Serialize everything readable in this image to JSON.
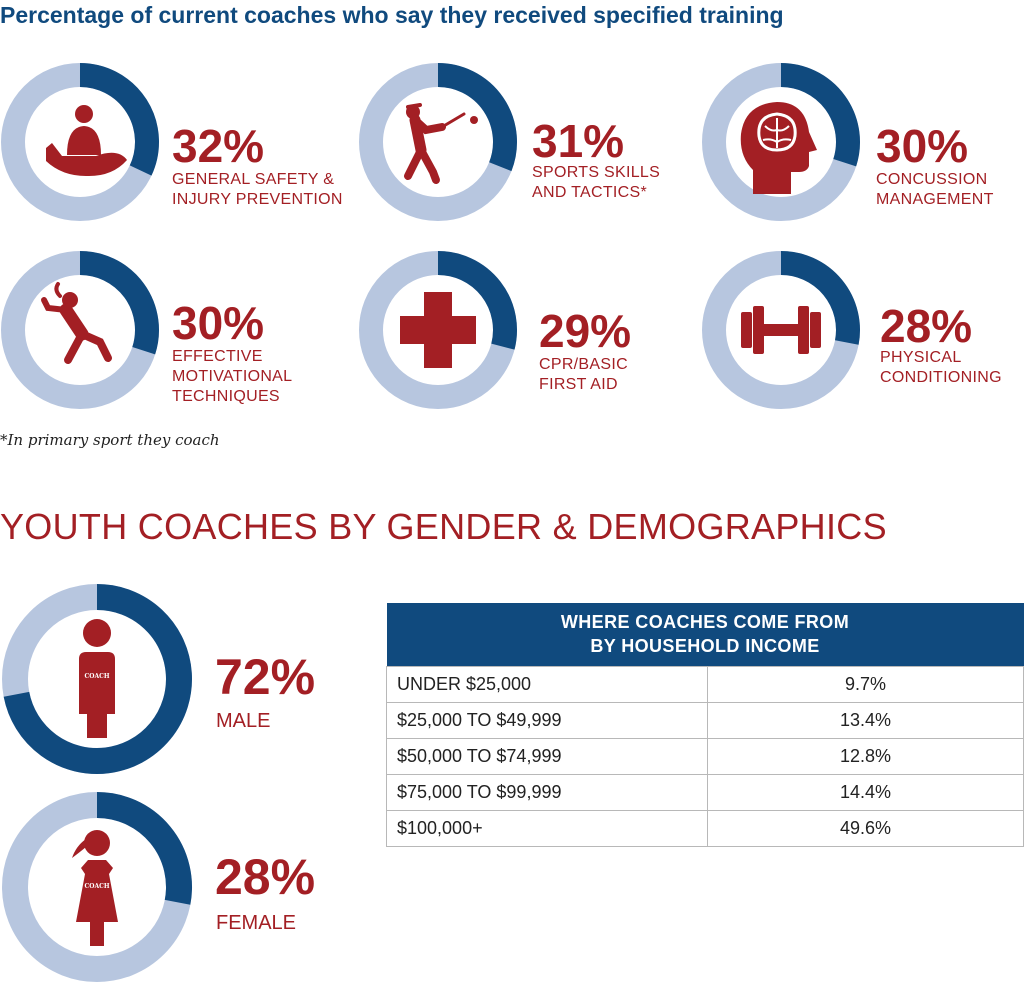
{
  "colors": {
    "navy": "#104a7e",
    "light_blue": "#b7c6df",
    "red": "#a31f24"
  },
  "training_title": "Percentage of current coaches who say they received specified training",
  "training": [
    {
      "percent_label": "32%",
      "label_line1": "GENERAL SAFETY &",
      "label_line2": "INJURY PREVENTION",
      "label_line3": "",
      "icon": "hand-holding-person-icon"
    },
    {
      "percent_label": "31%",
      "label_line1": "SPORTS SKILLS",
      "label_line2": "AND TACTICS*",
      "label_line3": "",
      "icon": "baseball-batter-icon"
    },
    {
      "percent_label": "30%",
      "label_line1": "CONCUSSION",
      "label_line2": "MANAGEMENT",
      "label_line3": "",
      "icon": "head-brain-icon"
    },
    {
      "percent_label": "30%",
      "label_line1": "EFFECTIVE",
      "label_line2": "MOTIVATIONAL",
      "label_line3": "TECHNIQUES",
      "icon": "jumping-athlete-icon"
    },
    {
      "percent_label": "29%",
      "label_line1": "CPR/BASIC",
      "label_line2": "FIRST AID",
      "label_line3": "",
      "icon": "medical-cross-icon"
    },
    {
      "percent_label": "28%",
      "label_line1": "PHYSICAL",
      "label_line2": "CONDITIONING",
      "label_line3": "",
      "icon": "dumbbell-icon"
    }
  ],
  "footnote": "*In primary sport they coach",
  "demographics_title": "YOUTH COACHES BY GENDER & DEMOGRAPHICS",
  "gender": [
    {
      "percent_label": "72%",
      "label": "MALE",
      "shirt_text": "COACH",
      "icon": "male-coach-icon"
    },
    {
      "percent_label": "28%",
      "label": "FEMALE",
      "shirt_text": "COACH",
      "icon": "female-coach-icon"
    }
  ],
  "income_table": {
    "header_line1": "WHERE COACHES COME FROM",
    "header_line2": "BY HOUSEHOLD INCOME",
    "rows": [
      {
        "range": "UNDER $25,000",
        "value": "9.7%"
      },
      {
        "range": "$25,000 TO $49,999",
        "value": "13.4%"
      },
      {
        "range": "$50,000 TO $74,999",
        "value": "12.8%"
      },
      {
        "range": "$75,000 TO $99,999",
        "value": "14.4%"
      },
      {
        "range": "$100,000+",
        "value": "49.6%"
      }
    ]
  },
  "chart_data": [
    {
      "type": "pie",
      "title": "Percentage of current coaches who say they received specified training",
      "categories": [
        "GENERAL SAFETY & INJURY PREVENTION",
        "SPORTS SKILLS AND TACTICS*",
        "CONCUSSION MANAGEMENT",
        "EFFECTIVE MOTIVATIONAL TECHNIQUES",
        "CPR/BASIC FIRST AID",
        "PHYSICAL CONDITIONING"
      ],
      "values": [
        32,
        31,
        30,
        30,
        29,
        28
      ]
    },
    {
      "type": "pie",
      "title": "YOUTH COACHES BY GENDER & DEMOGRAPHICS",
      "categories": [
        "MALE",
        "FEMALE"
      ],
      "values": [
        72,
        28
      ]
    },
    {
      "type": "table",
      "title": "WHERE COACHES COME FROM BY HOUSEHOLD INCOME",
      "categories": [
        "UNDER $25,000",
        "$25,000 TO $49,999",
        "$50,000 TO $74,999",
        "$75,000 TO $99,999",
        "$100,000+"
      ],
      "values": [
        9.7,
        13.4,
        12.8,
        14.4,
        49.6
      ]
    }
  ]
}
